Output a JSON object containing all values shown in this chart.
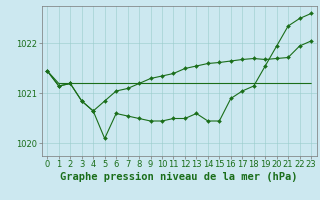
{
  "title": "Graphe pression niveau de la mer (hPa)",
  "background_color": "#cce8f0",
  "grid_color": "#99cccc",
  "line_color": "#1a6e1a",
  "line1_x": [
    0,
    1,
    2,
    3,
    4,
    5,
    6,
    7,
    8,
    9,
    10,
    11,
    12,
    13,
    14,
    15,
    16,
    17,
    18,
    19,
    20,
    21,
    22,
    23
  ],
  "line1_y": [
    1021.45,
    1021.15,
    1021.2,
    1020.85,
    1020.65,
    1020.1,
    1020.6,
    1020.55,
    1020.5,
    1020.45,
    1020.45,
    1020.5,
    1020.5,
    1020.6,
    1020.45,
    1020.45,
    1020.9,
    1021.05,
    1021.15,
    1021.55,
    1021.95,
    1022.35,
    1022.5,
    1022.6
  ],
  "line2_x": [
    0,
    1,
    2,
    3,
    4,
    5,
    6,
    7,
    8,
    9,
    10,
    11,
    12,
    13,
    14,
    15,
    16,
    17,
    18,
    19,
    20,
    21,
    22,
    23
  ],
  "line2_y": [
    1021.45,
    1021.2,
    1021.2,
    1021.2,
    1021.2,
    1021.2,
    1021.2,
    1021.2,
    1021.2,
    1021.2,
    1021.2,
    1021.2,
    1021.2,
    1021.2,
    1021.2,
    1021.2,
    1021.2,
    1021.2,
    1021.2,
    1021.2,
    1021.2,
    1021.2,
    1021.2,
    1021.2
  ],
  "line3_x": [
    0,
    1,
    2,
    3,
    4,
    5,
    6,
    7,
    8,
    9,
    10,
    11,
    12,
    13,
    14,
    15,
    16,
    17,
    18,
    19,
    20,
    21,
    22,
    23
  ],
  "line3_y": [
    1021.45,
    1021.15,
    1021.2,
    1020.85,
    1020.65,
    1020.85,
    1021.05,
    1021.1,
    1021.2,
    1021.3,
    1021.35,
    1021.4,
    1021.5,
    1021.55,
    1021.6,
    1021.62,
    1021.65,
    1021.68,
    1021.7,
    1021.68,
    1021.7,
    1021.72,
    1021.95,
    1022.05
  ],
  "ylim": [
    1019.75,
    1022.75
  ],
  "yticks": [
    1020,
    1021,
    1022
  ],
  "xlim": [
    -0.5,
    23.5
  ],
  "title_fontsize": 7.5,
  "tick_fontsize": 6.0,
  "axis_label_color": "#1a6e1a"
}
